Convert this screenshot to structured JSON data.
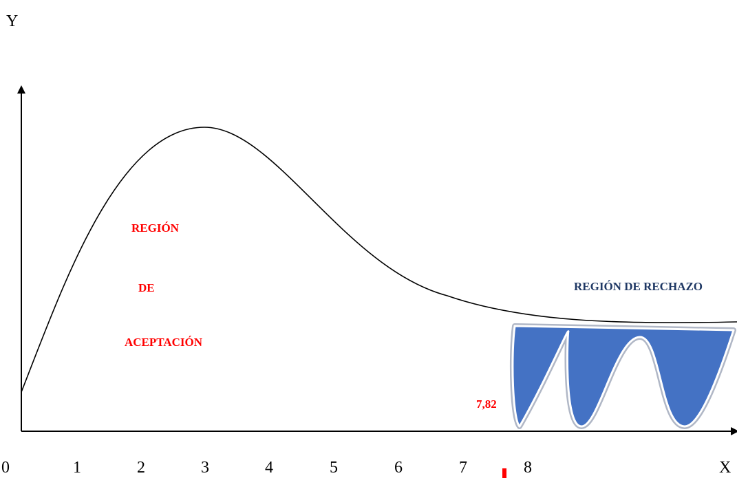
{
  "axes": {
    "y_letter": "Y",
    "x_letter": "X",
    "origin_label": "0",
    "x_ticks": [
      "1",
      "2",
      "3",
      "4",
      "5",
      "6",
      "7",
      "8"
    ]
  },
  "acceptance_region": {
    "line1": "REGIÓN",
    "line2": "DE",
    "line3": "ACEPTACIÓN"
  },
  "rejection_region": {
    "label": "REGIÓN DE RECHAZO"
  },
  "critical_value": {
    "label": "7,82"
  },
  "colors": {
    "curve": "#000000",
    "acceptance_text": "#ff0000",
    "rejection_text": "#1f3864",
    "rejection_fill": "#4472c4",
    "critical_text": "#ff0000",
    "critical_marker": "#ff0000"
  }
}
